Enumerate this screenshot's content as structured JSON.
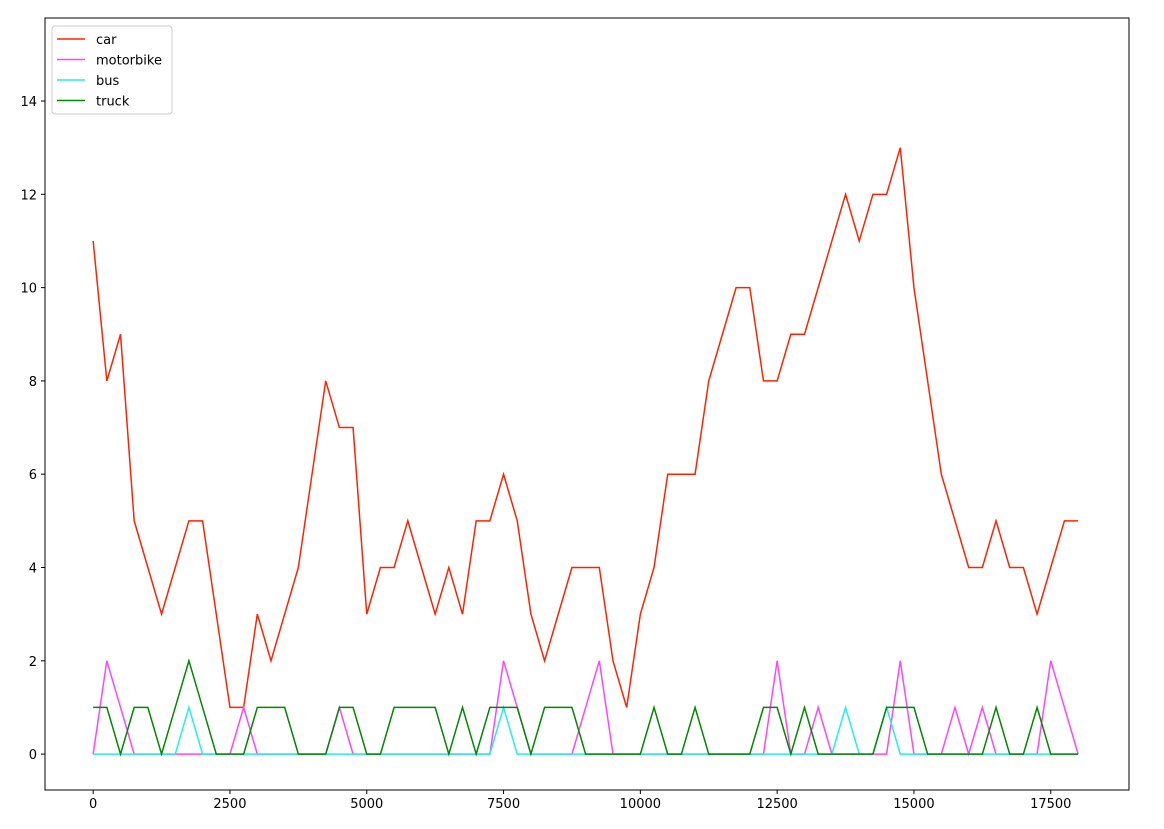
{
  "chart_data": {
    "type": "line",
    "x": [
      0,
      250,
      500,
      750,
      1000,
      1250,
      1500,
      1750,
      2000,
      2250,
      2500,
      2750,
      3000,
      3250,
      3500,
      3750,
      4000,
      4250,
      4500,
      4750,
      5000,
      5250,
      5500,
      5750,
      6000,
      6250,
      6500,
      6750,
      7000,
      7250,
      7500,
      7750,
      8000,
      8250,
      8500,
      8750,
      9000,
      9250,
      9500,
      9750,
      10000,
      10250,
      10500,
      10750,
      11000,
      11250,
      11500,
      11750,
      12000,
      12250,
      12500,
      12750,
      13000,
      13250,
      13500,
      13750,
      14000,
      14250,
      14500,
      14750,
      15000,
      15250,
      15500,
      15750,
      16000,
      16250,
      16500,
      16750,
      17000,
      17250,
      17500,
      17750,
      18000
    ],
    "series": [
      {
        "name": "car",
        "color": "#ff2200",
        "values": [
          11,
          8,
          9,
          5,
          4,
          3,
          4,
          5,
          5,
          3,
          1,
          1,
          3,
          2,
          3,
          4,
          6,
          8,
          7,
          7,
          3,
          4,
          4,
          5,
          4,
          3,
          4,
          3,
          5,
          5,
          6,
          5,
          3,
          2,
          3,
          4,
          4,
          4,
          2,
          1,
          3,
          4,
          6,
          6,
          6,
          8,
          9,
          10,
          10,
          8,
          8,
          9,
          9,
          10,
          11,
          12,
          11,
          12,
          12,
          13,
          10,
          8,
          6,
          5,
          4,
          4,
          5,
          4,
          4,
          3,
          4,
          5,
          5
        ]
      },
      {
        "name": "motorbike",
        "color": "#ff44ff",
        "values": [
          0,
          2,
          1,
          0,
          0,
          0,
          0,
          0,
          0,
          0,
          0,
          1,
          0,
          0,
          0,
          0,
          0,
          0,
          1,
          0,
          0,
          0,
          0,
          0,
          0,
          0,
          0,
          0,
          0,
          0,
          2,
          1,
          0,
          0,
          0,
          0,
          1,
          2,
          0,
          0,
          0,
          0,
          0,
          0,
          0,
          0,
          0,
          0,
          0,
          0,
          2,
          0,
          0,
          1,
          0,
          0,
          0,
          0,
          0,
          2,
          0,
          0,
          0,
          1,
          0,
          1,
          0,
          0,
          0,
          0,
          2,
          1,
          0
        ]
      },
      {
        "name": "bus",
        "color": "#22eeee",
        "values": [
          0,
          0,
          0,
          0,
          0,
          0,
          0,
          1,
          0,
          0,
          0,
          0,
          0,
          0,
          0,
          0,
          0,
          0,
          0,
          0,
          0,
          0,
          0,
          0,
          0,
          0,
          0,
          0,
          0,
          0,
          1,
          0,
          0,
          0,
          0,
          0,
          0,
          0,
          0,
          0,
          0,
          0,
          0,
          0,
          0,
          0,
          0,
          0,
          0,
          0,
          0,
          0,
          0,
          0,
          0,
          1,
          0,
          0,
          1,
          0,
          0,
          0,
          0,
          0,
          0,
          0,
          0,
          0,
          0,
          0,
          0,
          0,
          0
        ]
      },
      {
        "name": "truck",
        "color": "#008800",
        "values": [
          1,
          1,
          0,
          1,
          1,
          0,
          1,
          2,
          1,
          0,
          0,
          0,
          1,
          1,
          1,
          0,
          0,
          0,
          1,
          1,
          0,
          0,
          1,
          1,
          1,
          1,
          0,
          1,
          0,
          1,
          1,
          1,
          0,
          1,
          1,
          1,
          0,
          0,
          0,
          0,
          0,
          1,
          0,
          0,
          1,
          0,
          0,
          0,
          0,
          1,
          1,
          0,
          1,
          0,
          0,
          0,
          0,
          0,
          1,
          1,
          1,
          0,
          0,
          0,
          0,
          0,
          1,
          0,
          0,
          1,
          0,
          0,
          0
        ]
      }
    ],
    "xlim": [
      -880,
      18930
    ],
    "ylim": [
      -0.77,
      15.78
    ],
    "xticks": [
      0,
      2500,
      5000,
      7500,
      10000,
      12500,
      15000,
      17500
    ],
    "yticks": [
      0,
      2,
      4,
      6,
      8,
      10,
      12,
      14
    ],
    "legend": "upper left"
  }
}
